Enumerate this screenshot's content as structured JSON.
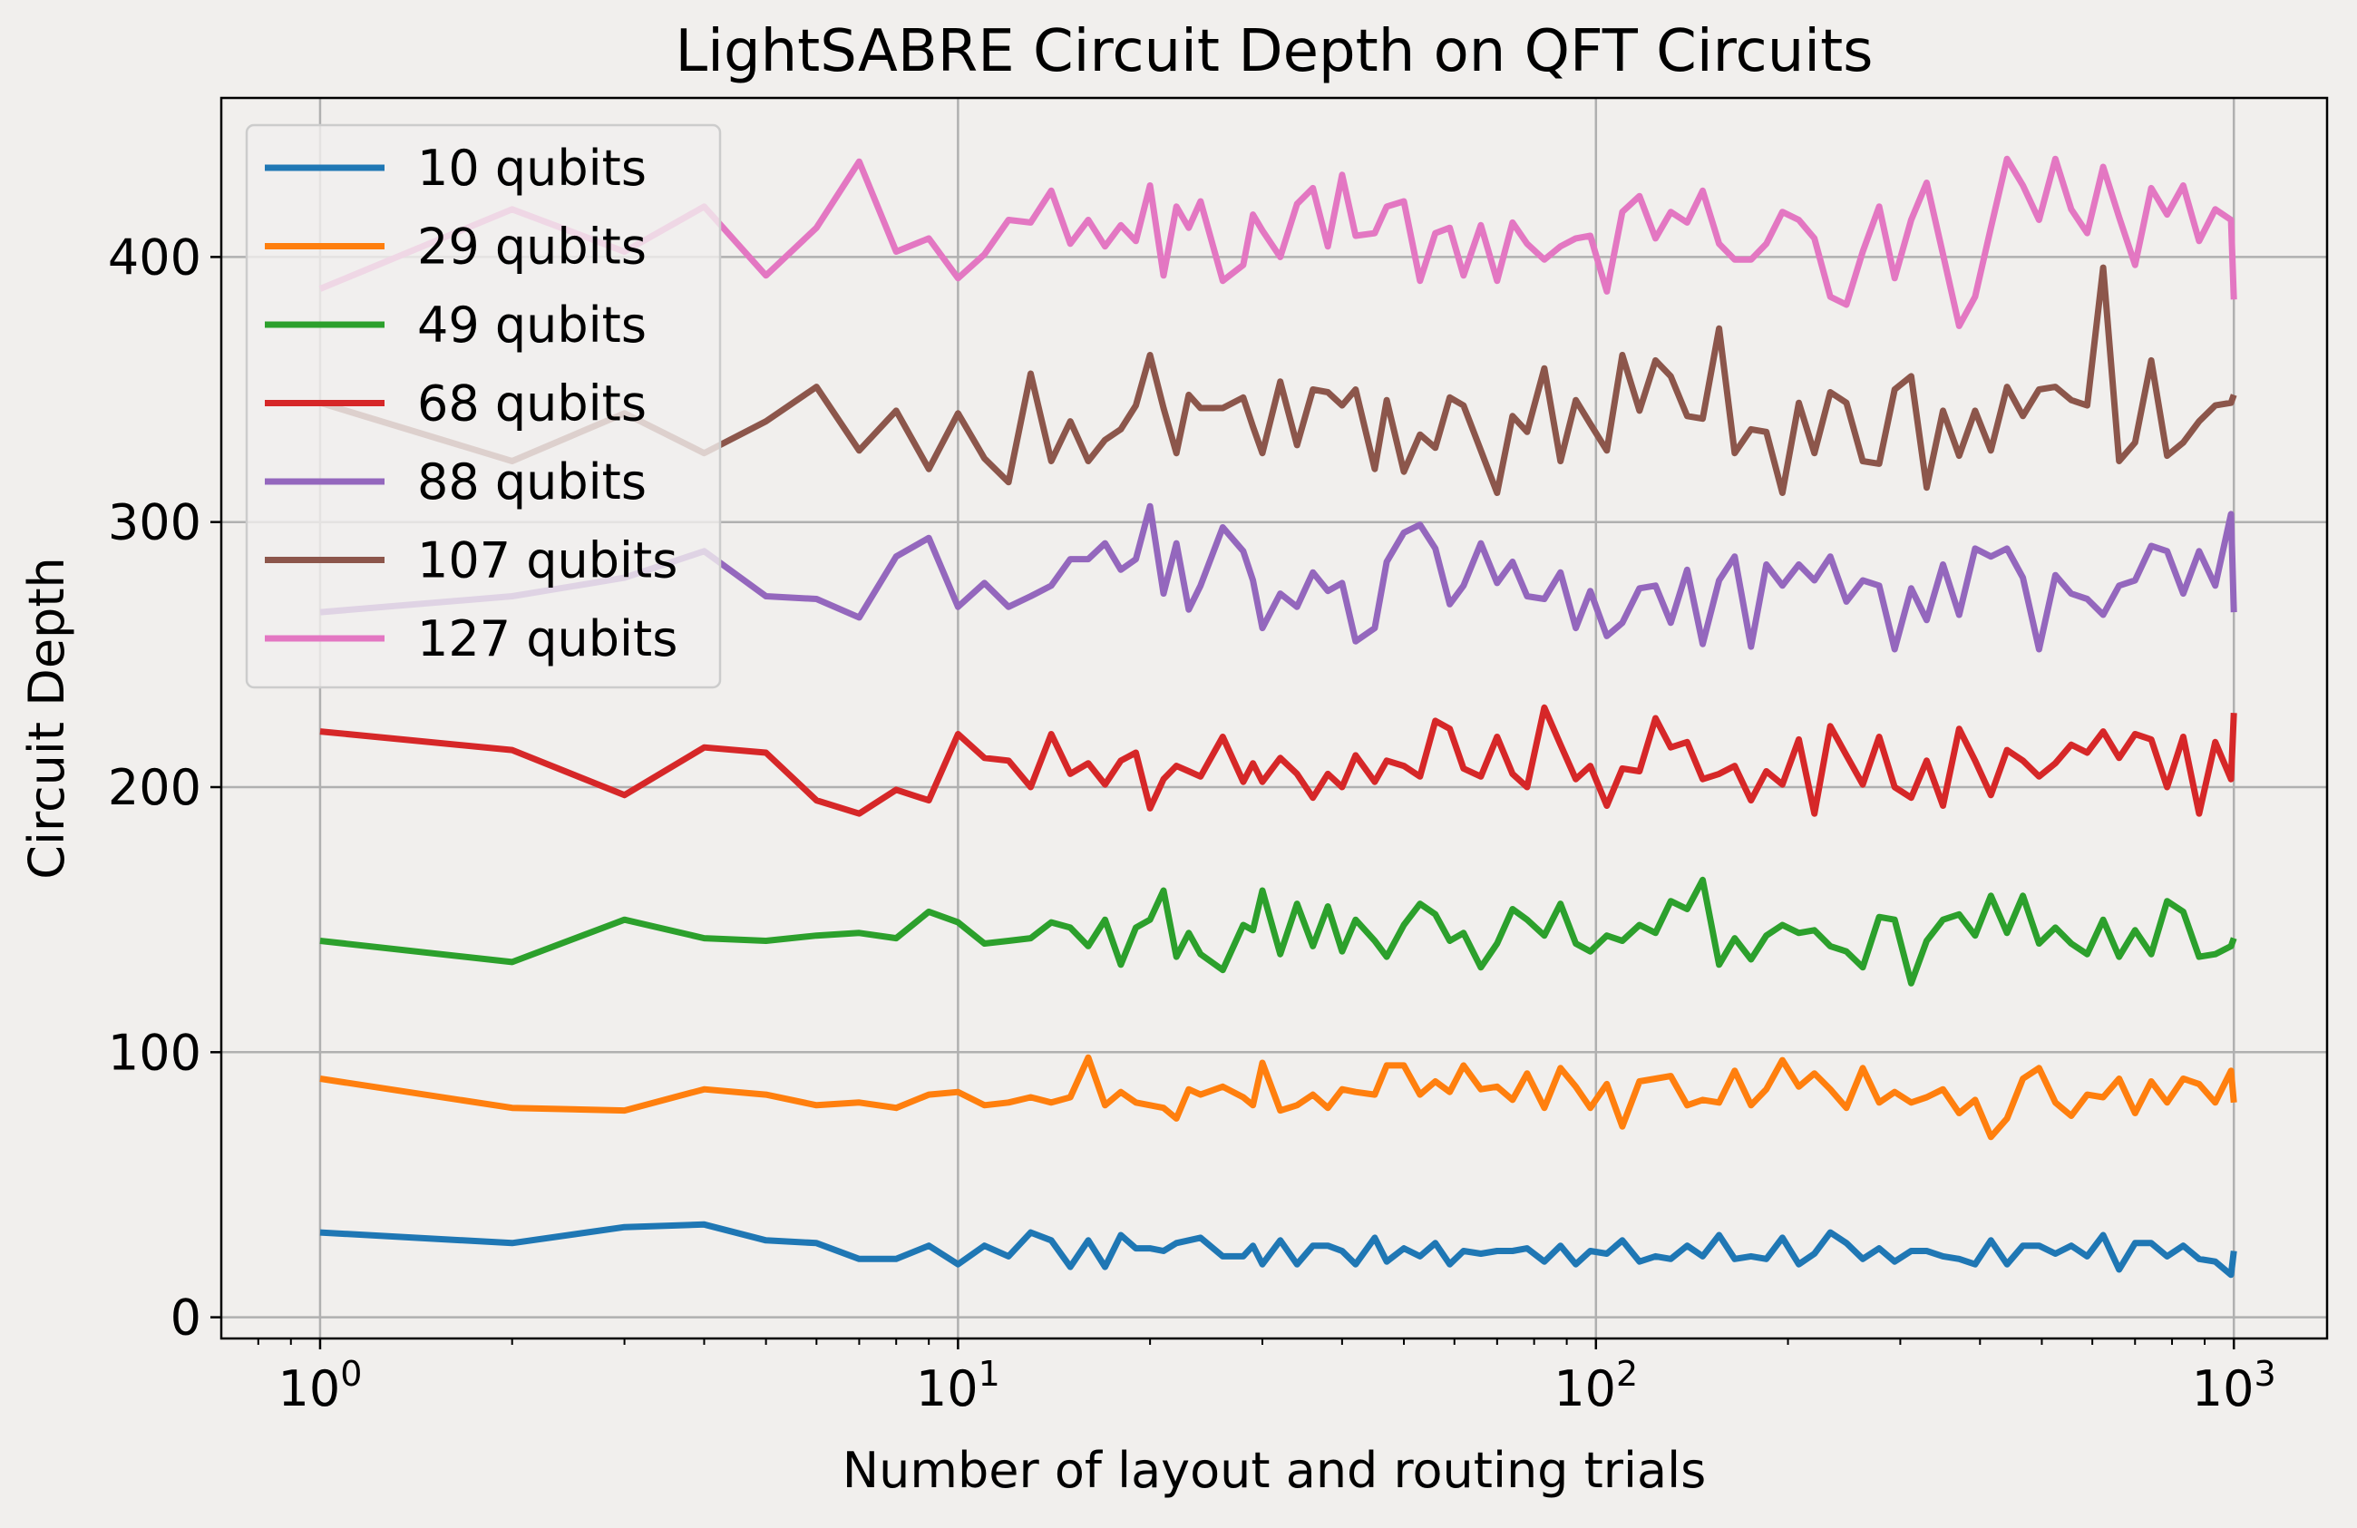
{
  "chart_data": {
    "type": "line",
    "title": "LightSABRE Circuit Depth on QFT Circuits",
    "xlabel": "Number of layout and routing trials",
    "ylabel": "Circuit Depth",
    "xscale": "log",
    "xlim": [
      0.7,
      1400
    ],
    "ylim": [
      -8,
      460
    ],
    "xticks": [
      {
        "value": 1,
        "base": "10",
        "exp": "0"
      },
      {
        "value": 10,
        "base": "10",
        "exp": "1"
      },
      {
        "value": 100,
        "base": "10",
        "exp": "2"
      },
      {
        "value": 1000,
        "base": "10",
        "exp": "3"
      }
    ],
    "yticks": [
      0,
      100,
      200,
      300,
      400
    ],
    "grid": true,
    "legend_position": "top-left",
    "x": [
      1,
      2,
      3,
      4,
      5,
      6,
      7,
      8,
      9,
      10,
      11,
      12,
      13,
      14,
      15,
      16,
      17,
      18,
      19,
      20,
      21,
      22,
      23,
      24,
      26,
      28,
      29,
      30,
      32,
      34,
      36,
      38,
      40,
      42,
      45,
      47,
      50,
      53,
      56,
      59,
      62,
      66,
      70,
      74,
      78,
      83,
      88,
      93,
      98,
      104,
      110,
      117,
      124,
      131,
      139,
      147,
      156,
      165,
      175,
      185,
      196,
      208,
      220,
      233,
      247,
      262,
      278,
      294,
      312,
      330,
      350,
      371,
      393,
      416,
      441,
      467,
      495,
      525,
      556,
      589,
      624,
      661,
      700,
      742,
      786,
      833,
      882,
      935,
      990,
      1000
    ],
    "series": [
      {
        "name": "10 qubits",
        "color": "#1f77b4",
        "values": [
          32,
          28,
          34,
          35,
          29,
          28,
          22,
          22,
          27,
          20,
          27,
          23,
          32,
          29,
          19,
          29,
          19,
          31,
          26,
          26,
          25,
          28,
          29,
          30,
          23,
          23,
          27,
          20,
          29,
          20,
          27,
          27,
          25,
          20,
          30,
          21,
          26,
          23,
          28,
          20,
          25,
          24,
          25,
          25,
          26,
          21,
          27,
          20,
          25,
          24,
          29,
          21,
          23,
          22,
          27,
          23,
          31,
          22,
          23,
          22,
          30,
          20,
          24,
          32,
          28,
          22,
          26,
          21,
          25,
          25,
          23,
          22,
          20,
          29,
          20,
          27,
          27,
          24,
          27,
          23,
          31,
          18,
          28,
          28,
          23,
          27,
          22,
          21,
          16,
          25
        ]
      },
      {
        "name": "29 qubits",
        "color": "#ff7f0e",
        "values": [
          90,
          79,
          78,
          86,
          84,
          80,
          81,
          79,
          84,
          85,
          80,
          81,
          83,
          81,
          83,
          98,
          80,
          85,
          81,
          80,
          79,
          75,
          86,
          84,
          87,
          83,
          80,
          96,
          78,
          80,
          84,
          79,
          86,
          85,
          84,
          95,
          95,
          84,
          89,
          85,
          95,
          86,
          87,
          82,
          92,
          79,
          94,
          87,
          79,
          88,
          72,
          89,
          90,
          91,
          80,
          82,
          81,
          93,
          80,
          86,
          97,
          87,
          92,
          86,
          79,
          94,
          81,
          85,
          81,
          83,
          86,
          77,
          82,
          68,
          75,
          90,
          94,
          81,
          76,
          84,
          83,
          90,
          77,
          89,
          81,
          90,
          88,
          81,
          93,
          81
        ]
      },
      {
        "name": "49 qubits",
        "color": "#2ca02c",
        "values": [
          142,
          134,
          150,
          143,
          142,
          144,
          145,
          143,
          153,
          149,
          141,
          142,
          143,
          149,
          147,
          140,
          150,
          133,
          147,
          150,
          161,
          136,
          145,
          137,
          131,
          148,
          146,
          161,
          137,
          156,
          140,
          155,
          138,
          150,
          142,
          136,
          148,
          156,
          152,
          142,
          145,
          132,
          141,
          154,
          150,
          144,
          156,
          141,
          138,
          144,
          142,
          148,
          145,
          157,
          154,
          165,
          133,
          143,
          135,
          144,
          148,
          145,
          146,
          140,
          138,
          132,
          151,
          150,
          126,
          142,
          150,
          152,
          144,
          159,
          145,
          159,
          141,
          147,
          141,
          137,
          150,
          136,
          146,
          137,
          157,
          153,
          136,
          137,
          140,
          143
        ]
      },
      {
        "name": "68 qubits",
        "color": "#d62728",
        "values": [
          221,
          214,
          197,
          215,
          213,
          195,
          190,
          199,
          195,
          220,
          211,
          210,
          200,
          220,
          205,
          209,
          201,
          210,
          213,
          192,
          203,
          208,
          206,
          204,
          219,
          202,
          209,
          202,
          211,
          205,
          196,
          205,
          200,
          212,
          202,
          210,
          208,
          204,
          225,
          222,
          207,
          204,
          219,
          205,
          200,
          230,
          216,
          203,
          208,
          193,
          207,
          206,
          226,
          215,
          217,
          203,
          205,
          208,
          195,
          206,
          201,
          218,
          190,
          223,
          212,
          201,
          219,
          200,
          196,
          210,
          193,
          222,
          210,
          197,
          214,
          210,
          204,
          209,
          216,
          213,
          221,
          211,
          220,
          218,
          200,
          219,
          190,
          217,
          203,
          228
        ]
      },
      {
        "name": "88 qubits",
        "color": "#9467bd",
        "values": [
          266,
          272,
          279,
          289,
          272,
          271,
          264,
          287,
          294,
          268,
          277,
          268,
          272,
          276,
          286,
          286,
          292,
          282,
          286,
          306,
          273,
          292,
          267,
          276,
          298,
          289,
          278,
          260,
          273,
          268,
          281,
          274,
          277,
          255,
          260,
          285,
          296,
          299,
          290,
          269,
          276,
          292,
          277,
          285,
          272,
          271,
          281,
          260,
          274,
          257,
          262,
          275,
          276,
          262,
          282,
          254,
          278,
          287,
          253,
          284,
          276,
          284,
          278,
          287,
          270,
          278,
          276,
          252,
          275,
          263,
          284,
          265,
          290,
          287,
          290,
          279,
          252,
          280,
          273,
          271,
          265,
          276,
          278,
          291,
          289,
          273,
          289,
          276,
          303,
          266
        ]
      },
      {
        "name": "107 qubits",
        "color": "#8c564b",
        "values": [
          345,
          323,
          341,
          326,
          338,
          351,
          327,
          342,
          320,
          341,
          324,
          315,
          356,
          323,
          338,
          323,
          331,
          335,
          344,
          363,
          343,
          326,
          348,
          343,
          343,
          347,
          336,
          326,
          353,
          329,
          350,
          349,
          344,
          350,
          320,
          346,
          319,
          333,
          328,
          347,
          344,
          327,
          311,
          340,
          334,
          358,
          323,
          346,
          337,
          327,
          363,
          342,
          361,
          355,
          340,
          339,
          373,
          326,
          335,
          334,
          311,
          345,
          326,
          349,
          345,
          323,
          322,
          350,
          355,
          313,
          342,
          325,
          342,
          327,
          351,
          340,
          350,
          351,
          346,
          344,
          396,
          323,
          330,
          361,
          325,
          330,
          338,
          344,
          345,
          348
        ]
      },
      {
        "name": "127 qubits",
        "color": "#e377c2",
        "values": [
          388,
          418,
          402,
          419,
          393,
          411,
          436,
          402,
          407,
          392,
          401,
          414,
          413,
          425,
          405,
          414,
          404,
          412,
          406,
          427,
          393,
          419,
          411,
          421,
          391,
          397,
          416,
          410,
          400,
          420,
          426,
          404,
          431,
          408,
          409,
          419,
          421,
          391,
          409,
          411,
          393,
          412,
          391,
          413,
          405,
          399,
          404,
          407,
          408,
          387,
          417,
          423,
          407,
          417,
          413,
          425,
          405,
          399,
          399,
          405,
          417,
          414,
          407,
          385,
          382,
          402,
          419,
          392,
          414,
          428,
          401,
          374,
          385,
          411,
          437,
          427,
          414,
          437,
          418,
          409,
          434,
          415,
          397,
          426,
          416,
          427,
          406,
          418,
          414,
          384
        ]
      }
    ]
  }
}
